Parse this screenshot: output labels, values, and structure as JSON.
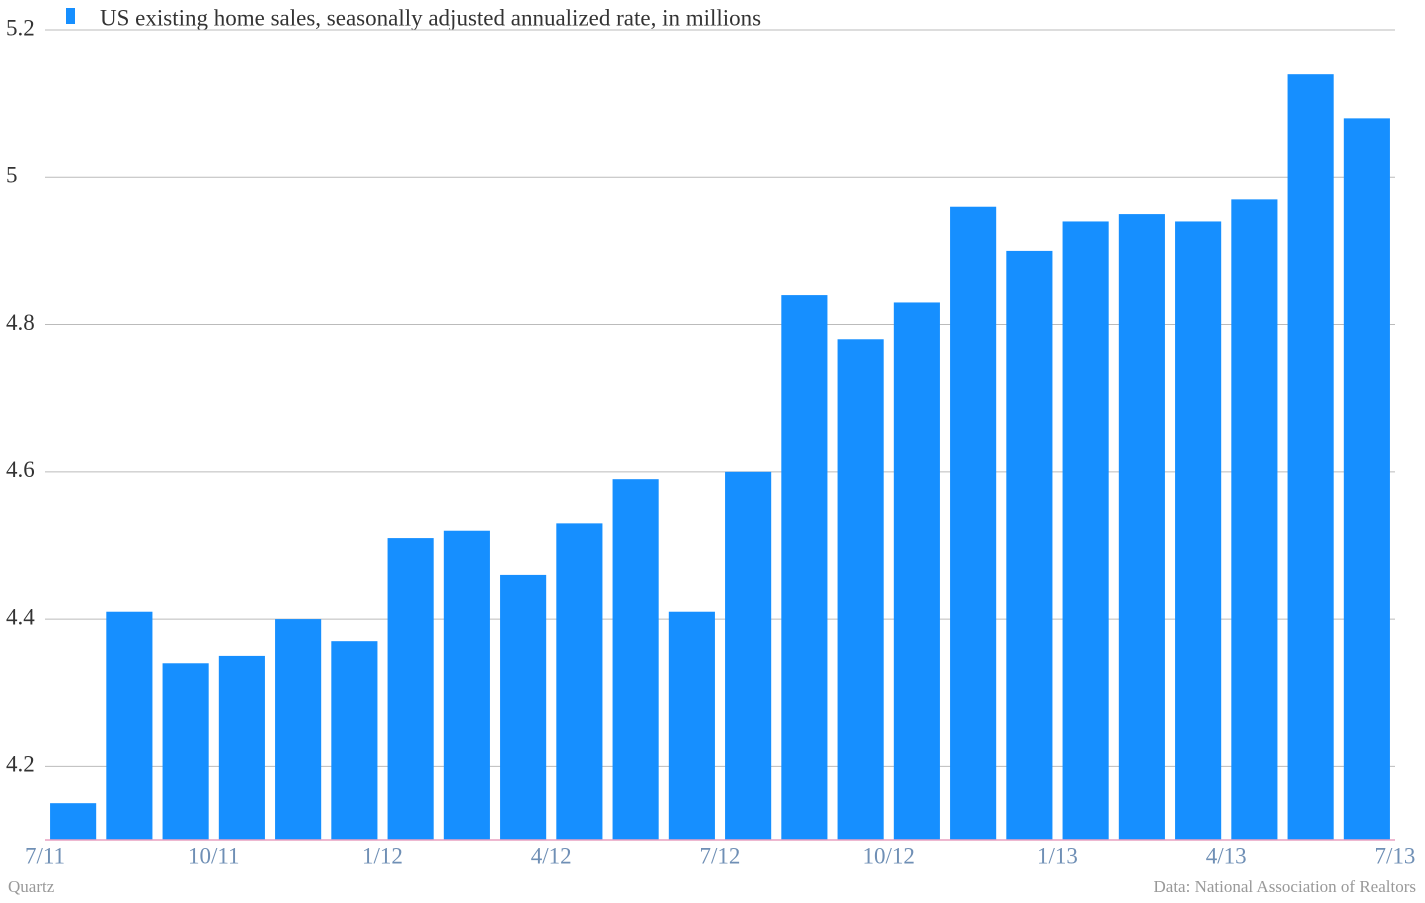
{
  "chart_data": {
    "type": "bar",
    "legend_label": "US existing home sales, seasonally adjusted annualized rate, in millions",
    "categories": [
      null,
      null,
      null,
      null,
      null,
      null,
      null,
      null,
      null,
      null,
      null,
      null,
      null,
      null,
      null,
      null,
      null,
      null,
      null,
      null,
      null,
      null,
      null,
      null
    ],
    "values": [
      4.15,
      4.41,
      4.34,
      4.35,
      4.4,
      4.37,
      4.51,
      4.52,
      4.46,
      4.53,
      4.59,
      4.41,
      4.6,
      4.84,
      4.78,
      4.83,
      4.96,
      4.9,
      4.94,
      4.95,
      4.94,
      4.97,
      5.14,
      5.08
    ],
    "color": "#168fff",
    "x_labels": [
      "7/11",
      "10/11",
      "1/12",
      "4/12",
      "7/12",
      "10/12",
      "1/13",
      "4/13",
      "7/13"
    ],
    "ylim": [
      4.1,
      5.2
    ],
    "yticks": [
      4.2,
      4.4,
      4.6,
      4.8,
      5,
      5.2
    ],
    "grid": true,
    "source": "Data: National Association of Realtors",
    "credit": "Quartz"
  }
}
